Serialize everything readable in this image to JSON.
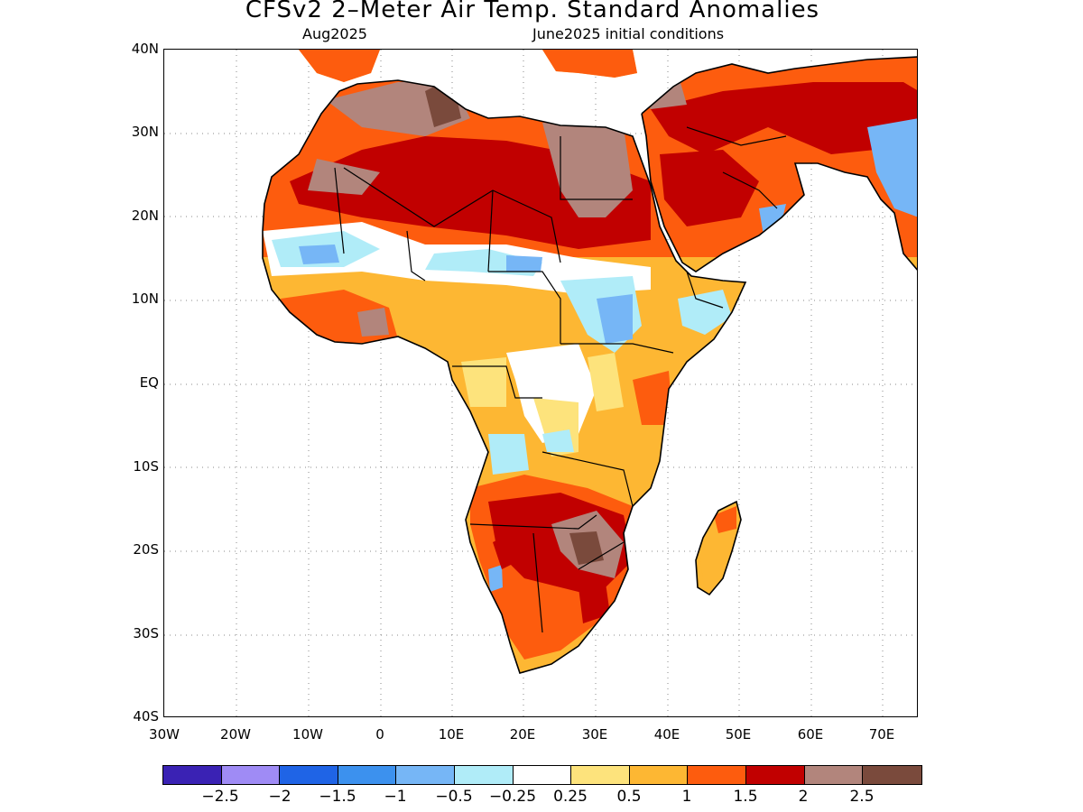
{
  "title": "CFSv2 2–Meter Air Temp. Standard Anomalies",
  "subtitle_left": "Aug2025",
  "subtitle_right": "June2025 initial conditions",
  "y_ticks": [
    "40N",
    "30N",
    "20N",
    "10N",
    "EQ",
    "10S",
    "20S",
    "30S",
    "40S"
  ],
  "x_ticks": [
    "30W",
    "20W",
    "10W",
    "0",
    "10E",
    "20E",
    "30E",
    "40E",
    "50E",
    "60E",
    "70E"
  ],
  "colorbar": {
    "colors": [
      "#3a22b4",
      "#9f8bf5",
      "#1f64e6",
      "#3c91ee",
      "#76b6f6",
      "#b0ecf8",
      "#ffffff",
      "#fde37c",
      "#fdb733",
      "#fd5c0e",
      "#c10000",
      "#b2857c",
      "#7a4a3c"
    ],
    "labels": [
      "−2.5",
      "−2",
      "−1.5",
      "−1",
      "−0.5",
      "−0.25",
      "0.25",
      "0.5",
      "1",
      "1.5",
      "2",
      "2.5"
    ]
  },
  "map": {
    "region": "Africa",
    "lat_range": [
      -40,
      40
    ],
    "lon_range": [
      -30,
      75
    ]
  }
}
